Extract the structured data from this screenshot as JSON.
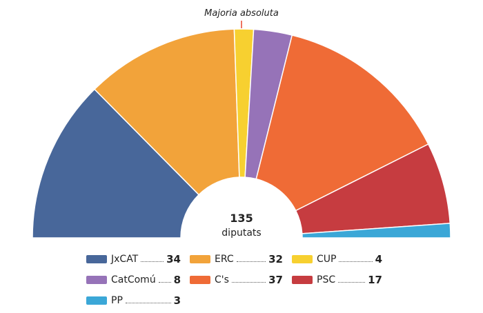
{
  "chart_data": {
    "type": "pie",
    "subtype": "parliament-semicircle",
    "total": "135",
    "total_label": "diputats",
    "majority_label": "Majoria absoluta",
    "majority_line_color": "#e8452c",
    "series": [
      {
        "name": "JxCAT",
        "value": 34,
        "color": "#48679a"
      },
      {
        "name": "ERC",
        "value": 32,
        "color": "#f2a33a"
      },
      {
        "name": "CUP",
        "value": 4,
        "color": "#f7d030"
      },
      {
        "name": "CatComú",
        "value": 8,
        "color": "#9673b8"
      },
      {
        "name": "C's",
        "value": 37,
        "color": "#ef6b36"
      },
      {
        "name": "PSC",
        "value": 17,
        "color": "#c63c40"
      },
      {
        "name": "PP",
        "value": 3,
        "color": "#3ba7d7"
      }
    ],
    "legend_position": "bottom"
  }
}
